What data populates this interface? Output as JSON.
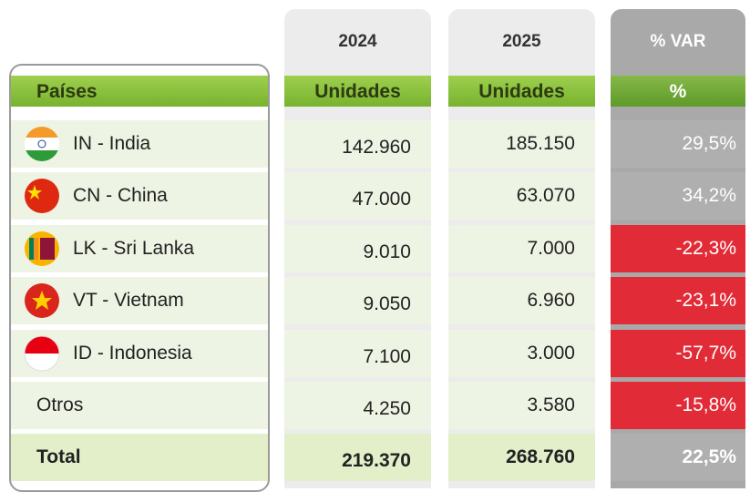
{
  "header": {
    "years": [
      "2024",
      "2025"
    ],
    "var_title": "% VAR",
    "columns": [
      "Países",
      "Unidades",
      "Unidades",
      "%"
    ]
  },
  "rows": [
    {
      "country": "IN - India",
      "v2024": "142.960",
      "v2025": "185.150",
      "var": "29,5%"
    },
    {
      "country": "CN - China",
      "v2024": "47.000",
      "v2025": "63.070",
      "var": "34,2%"
    },
    {
      "country": "LK - Sri Lanka",
      "v2024": "9.010",
      "v2025": "7.000",
      "var": "-22,3%"
    },
    {
      "country": "VT - Vietnam",
      "v2024": "9.050",
      "v2025": "6.960",
      "var": "-23,1%"
    },
    {
      "country": "ID - Indonesia",
      "v2024": "7.100",
      "v2025": "3.000",
      "var": "-57,7%"
    },
    {
      "country": "Otros",
      "v2024": "4.250",
      "v2025": "3.580",
      "var": "-15,8%"
    }
  ],
  "total": {
    "label": "Total",
    "v2024": "219.370",
    "v2025": "268.760",
    "var": "22,5%"
  }
}
